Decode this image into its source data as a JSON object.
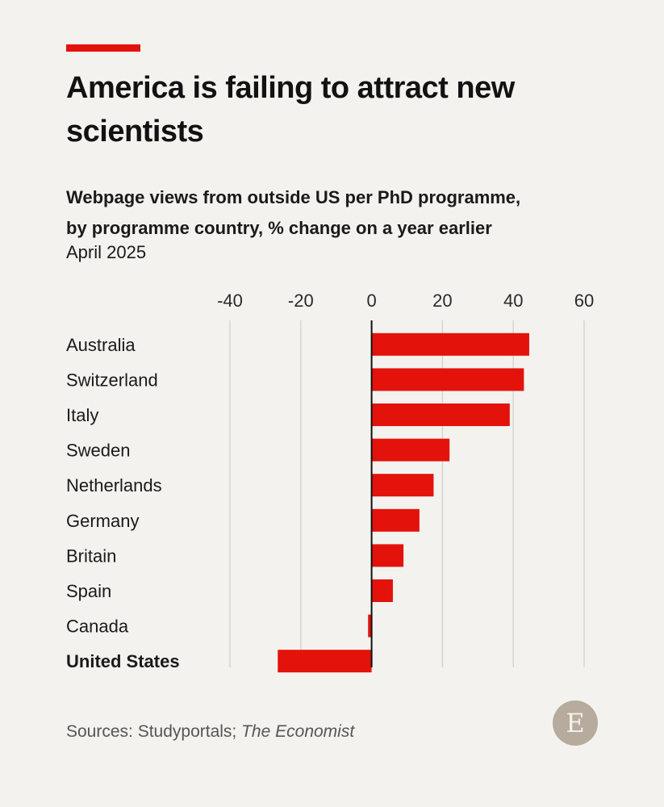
{
  "header": {
    "title": "America is failing to attract new scientists",
    "subtitle_line1": "Webpage views from outside US per PhD programme,",
    "subtitle_line2": "by programme country, % change on a year earlier",
    "date": "April 2025"
  },
  "colors": {
    "accent": "#e3120b",
    "bar": "#e3120b",
    "grid": "#d6d5d0",
    "axis": "#121212",
    "background": "#f3f2ee"
  },
  "chart_data": {
    "type": "bar",
    "orientation": "horizontal",
    "title": "America is failing to attract new scientists",
    "xlabel": "% change on a year earlier",
    "ylabel": "",
    "xlim": [
      -40,
      60
    ],
    "ticks": [
      -40,
      -20,
      0,
      20,
      40,
      60
    ],
    "tick_labels": [
      "-40",
      "-20",
      "0",
      "20",
      "40",
      "60"
    ],
    "grid": true,
    "axis_position": "top",
    "highlight": "United States",
    "categories": [
      "Australia",
      "Switzerland",
      "Italy",
      "Sweden",
      "Netherlands",
      "Germany",
      "Britain",
      "Spain",
      "Canada",
      "United States"
    ],
    "values": [
      44.5,
      43,
      39,
      22,
      17.5,
      13.5,
      9,
      6,
      -1,
      -26.5
    ]
  },
  "footer": {
    "source_prefix": "Sources: Studyportals; ",
    "source_italic": "The Economist",
    "logo_letter": "E"
  }
}
